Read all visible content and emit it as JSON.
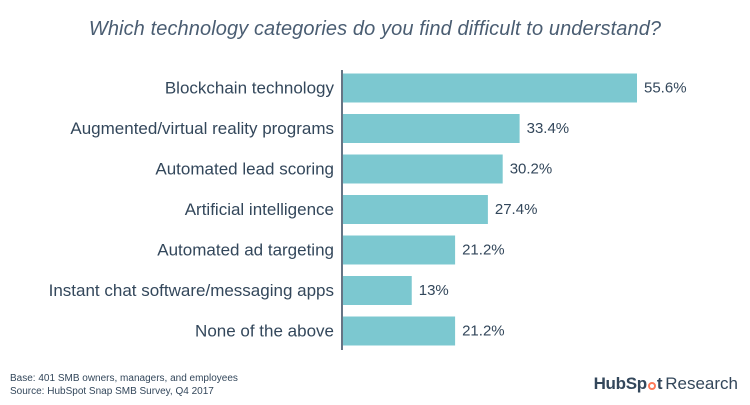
{
  "chart_data": {
    "type": "bar",
    "orientation": "horizontal",
    "title": "Which technology categories do you find difficult to understand?",
    "categories": [
      "Blockchain technology",
      "Augmented/virtual reality programs",
      "Automated lead scoring",
      "Artificial intelligence",
      "Automated ad targeting",
      "Instant chat software/messaging apps",
      "None of the above"
    ],
    "values": [
      55.6,
      33.4,
      30.2,
      27.4,
      21.2,
      13,
      21.2
    ],
    "value_labels": [
      "55.6%",
      "33.4%",
      "30.2%",
      "27.4%",
      "21.2%",
      "13%",
      "21.2%"
    ],
    "xlim": [
      0,
      100
    ],
    "grid": false,
    "legend": "none",
    "bar_color": "#7cc8d0",
    "axis_color": "#33475b"
  },
  "footnote": {
    "base": "Base: 401 SMB owners, managers, and employees",
    "source": "Source: HubSpot Snap SMB Survey, Q4 2017"
  },
  "brand": {
    "name": "HubSpot Research",
    "accent_color": "#ff7a59"
  }
}
